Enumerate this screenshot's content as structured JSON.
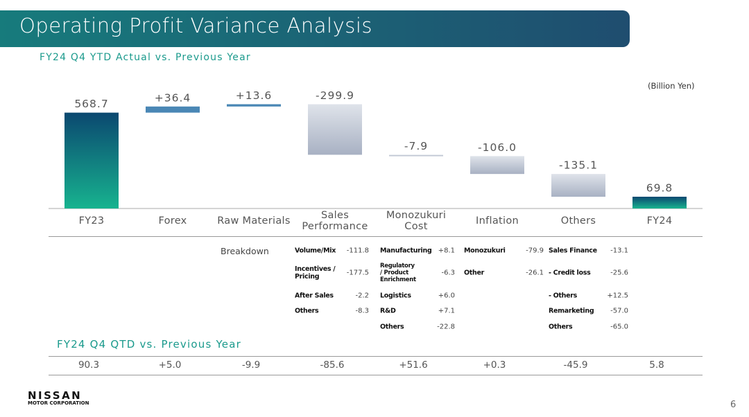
{
  "header": {
    "title": "Operating Profit Variance Analysis",
    "subtitle": "FY24 Q4 YTD Actual vs. Previous Year"
  },
  "chart_data": {
    "type": "waterfall",
    "unit": "(Billion Yen)",
    "categories": [
      "FY23",
      "Forex",
      "Raw Materials",
      "Sales Performance",
      "Monozukuri Cost",
      "Inflation",
      "Others",
      "FY24"
    ],
    "values": [
      568.7,
      36.4,
      13.6,
      -299.9,
      -7.9,
      -106.0,
      -135.1,
      69.8
    ],
    "value_labels": [
      "568.7",
      "+36.4",
      "+13.6",
      "-299.9",
      "-7.9",
      "-106.0",
      "-135.1",
      "69.8"
    ],
    "colors": {
      "total_top": "#0b4870",
      "total_bottom": "#17b38f",
      "increase": "#4a87b5",
      "decrease_top": "#dfe3ea",
      "decrease_bottom": "#a8b1c3"
    }
  },
  "breakdown": {
    "label": "Breakdown",
    "columns": [
      [
        {
          "name": "Volume/Mix",
          "value": "-111.8"
        },
        {
          "name": "Incentives / Pricing",
          "value": "-177.5"
        },
        {
          "name": "After Sales",
          "value": "-2.2"
        },
        {
          "name": "Others",
          "value": "-8.3"
        }
      ],
      [
        {
          "name": "Manufacturing",
          "value": "+8.1"
        },
        {
          "name": "Regulatory / Product Enrichment",
          "value": "-6.3"
        },
        {
          "name": "Logistics",
          "value": "+6.0"
        },
        {
          "name": "R&D",
          "value": "+7.1"
        },
        {
          "name": "Others",
          "value": "-22.8"
        }
      ],
      [
        {
          "name": "Monozukuri",
          "value": "-79.9"
        },
        {
          "name": "Other",
          "value": "-26.1"
        }
      ],
      [
        {
          "name": "Sales Finance",
          "value": "-13.1"
        },
        {
          "name": "- Credit loss",
          "value": "-25.6"
        },
        {
          "name": "- Others",
          "value": "+12.5"
        },
        {
          "name": "Remarketing",
          "value": "-57.0"
        },
        {
          "name": "Others",
          "value": "-65.0"
        }
      ]
    ]
  },
  "qtd": {
    "title": "FY24 Q4 QTD vs. Previous Year",
    "values": [
      "90.3",
      "+5.0",
      "-9.9",
      "-85.6",
      "+51.6",
      "+0.3",
      "-45.9",
      "5.8"
    ]
  },
  "footer": {
    "brand": "NISSAN",
    "company": "MOTOR CORPORATION",
    "page": "6"
  }
}
